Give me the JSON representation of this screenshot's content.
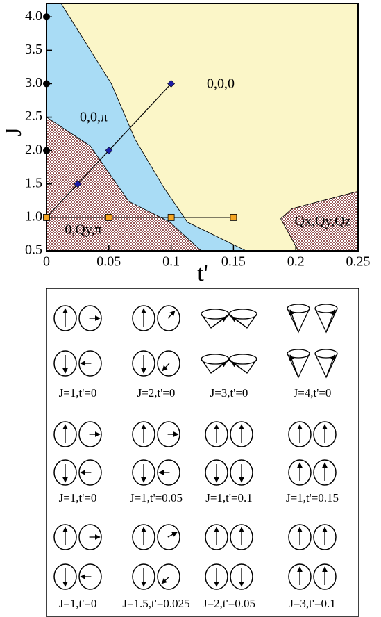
{
  "chart_data": {
    "type": "phase",
    "x_label": "t'",
    "y_label": "J",
    "xlim": [
      0,
      0.25
    ],
    "ylim": [
      0.5,
      4.2
    ],
    "xticks": [
      0,
      0.05,
      0.1,
      0.15,
      0.2,
      0.25
    ],
    "yticks": [
      0.5,
      {
        "value": 1,
        "label": "1.0"
      },
      1.5,
      {
        "value": 2,
        "label": "2.0"
      },
      2.5,
      {
        "value": 3,
        "label": "3.0"
      },
      3.5,
      {
        "value": 4,
        "label": "4.0"
      }
    ],
    "phases": [
      {
        "label": "0,0,0",
        "color": "#fbf6c8",
        "x": [
          0.0117,
          0.25,
          0.25,
          0.197,
          0.188,
          0.202,
          0.16,
          0.113,
          0.094,
          0.071,
          0.052
        ],
        "y": [
          4.2,
          4.2,
          1.39,
          1.13,
          0.98,
          0.5,
          0.5,
          0.93,
          1.45,
          2.17,
          3.0
        ]
      },
      {
        "label": "0,0,π",
        "color": "#a9dcf5",
        "x": [
          0.0117,
          0.052,
          0.071,
          0.094,
          0.113,
          0.16,
          0.124,
          0.099,
          0.066,
          0.035,
          0,
          0
        ],
        "y": [
          4.2,
          3.0,
          2.17,
          1.45,
          0.93,
          0.5,
          0.5,
          0.93,
          1.24,
          2.07,
          2.5,
          4.2
        ]
      },
      {
        "label": "0,Qy,π",
        "color": "#9a5a5a",
        "pattern": "checker",
        "x": [
          0,
          0.035,
          0.066,
          0.099,
          0.124,
          0
        ],
        "y": [
          2.5,
          2.07,
          1.24,
          0.93,
          0.5,
          0.5
        ]
      },
      {
        "label": "Qx,Qy,Qz",
        "color": "#9a5a5a",
        "pattern": "checker",
        "x": [
          0.25,
          0.197,
          0.188,
          0.202,
          0.25
        ],
        "y": [
          1.39,
          1.13,
          0.98,
          0.5,
          0.5
        ]
      }
    ],
    "series": [
      {
        "color": "#000000",
        "marker": "circle",
        "line": false,
        "x": [
          0,
          0,
          0,
          0
        ],
        "values": [
          1,
          2,
          3,
          4
        ]
      },
      {
        "color": "#1c1ca8",
        "marker": "diamond",
        "line": true,
        "x": [
          0,
          0.025,
          0.05,
          0.1
        ],
        "values": [
          1,
          1.5,
          2,
          3
        ]
      },
      {
        "color": "#f5a623",
        "marker": "square",
        "line": true,
        "x": [
          0,
          0.05,
          0.1,
          0.15
        ],
        "values": [
          1,
          1,
          1,
          1
        ]
      }
    ]
  },
  "spin_panel": {
    "rows": [
      [
        "J=1,t'=0",
        "J=2,t'=0",
        "J=3,t'=0",
        "J=4,t'=0"
      ],
      [
        "J=1,t'=0",
        "J=1,t'=0.05",
        "J=1,t'=0.1",
        "J=1,t'=0.15"
      ],
      [
        "J=1,t'=0",
        "J=1.5,t'=0.025",
        "J=2,t'=0.05",
        "J=3,t'=0.1"
      ]
    ]
  }
}
